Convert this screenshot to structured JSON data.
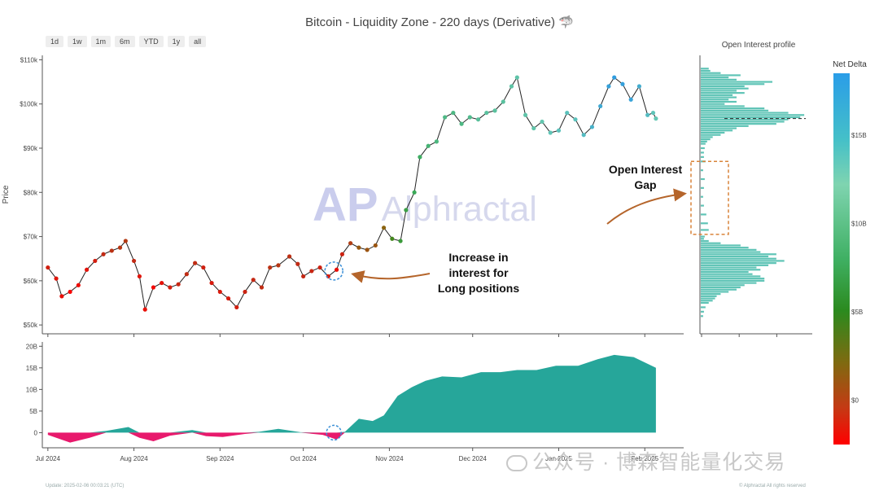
{
  "title": "Bitcoin - Liquidity Zone - 220 days (Derivative) 🦈",
  "range_buttons": [
    "1d",
    "1w",
    "1m",
    "6m",
    "YTD",
    "1y",
    "all"
  ],
  "oi_title": "Open Interest profile",
  "colorbar_title": "Net Delta",
  "logo_text": "Alphractal",
  "logo_mark": "AP",
  "footer_left": "Update: 2025-02-06 00:03:21 (UTC)",
  "footer_right": "© Alphractal All rights reserved",
  "watermark": "公众号 · 博森智能量化交易",
  "colors": {
    "oi_bar": "#5fc4b6",
    "area_pos": "#26a69a",
    "area_neg": "#e8196c",
    "annotation": "#b5652b",
    "gap_box": "#d9843a"
  },
  "chart_data": [
    {
      "type": "scatter",
      "name": "price",
      "ylabel": "Price",
      "ylim": [
        48000,
        111000
      ],
      "yticks": [
        "$50k",
        "$60k",
        "$70k",
        "$80k",
        "$90k",
        "$100k",
        "$110k"
      ],
      "xticks": [
        "Jul 2024",
        "Aug 2024",
        "Sep 2024",
        "Oct 2024",
        "Nov 2024",
        "Dec 2024",
        "Jan 2025",
        "Feb 2025"
      ],
      "x_range": [
        "2024-06-29",
        "2025-02-15"
      ],
      "x": [
        "2024-07-01",
        "2024-07-04",
        "2024-07-06",
        "2024-07-09",
        "2024-07-12",
        "2024-07-15",
        "2024-07-18",
        "2024-07-21",
        "2024-07-24",
        "2024-07-27",
        "2024-07-29",
        "2024-08-01",
        "2024-08-03",
        "2024-08-05",
        "2024-08-08",
        "2024-08-11",
        "2024-08-14",
        "2024-08-17",
        "2024-08-20",
        "2024-08-23",
        "2024-08-26",
        "2024-08-29",
        "2024-09-01",
        "2024-09-04",
        "2024-09-07",
        "2024-09-10",
        "2024-09-13",
        "2024-09-16",
        "2024-09-19",
        "2024-09-22",
        "2024-09-26",
        "2024-09-29",
        "2024-10-01",
        "2024-10-04",
        "2024-10-07",
        "2024-10-10",
        "2024-10-13",
        "2024-10-15",
        "2024-10-18",
        "2024-10-21",
        "2024-10-24",
        "2024-10-27",
        "2024-10-30",
        "2024-11-02",
        "2024-11-05",
        "2024-11-07",
        "2024-11-10",
        "2024-11-12",
        "2024-11-15",
        "2024-11-18",
        "2024-11-21",
        "2024-11-24",
        "2024-11-27",
        "2024-11-30",
        "2024-12-03",
        "2024-12-06",
        "2024-12-09",
        "2024-12-12",
        "2024-12-15",
        "2024-12-17",
        "2024-12-20",
        "2024-12-23",
        "2024-12-26",
        "2024-12-29",
        "2025-01-01",
        "2025-01-04",
        "2025-01-07",
        "2025-01-10",
        "2025-01-13",
        "2025-01-16",
        "2025-01-19",
        "2025-01-21",
        "2025-01-24",
        "2025-01-27",
        "2025-01-30",
        "2025-02-02",
        "2025-02-04",
        "2025-02-05"
      ],
      "y": [
        63000,
        60500,
        56500,
        57500,
        59000,
        62500,
        64500,
        66000,
        66800,
        67500,
        69000,
        64500,
        61000,
        53500,
        58500,
        59500,
        58500,
        59200,
        61500,
        64000,
        63000,
        59500,
        57500,
        56000,
        54000,
        57500,
        60200,
        58500,
        63000,
        63500,
        65500,
        63800,
        61000,
        62200,
        63000,
        61000,
        62500,
        66000,
        68500,
        67500,
        67000,
        68000,
        72000,
        69500,
        69000,
        76000,
        80000,
        88000,
        90500,
        91500,
        97000,
        98000,
        95500,
        97000,
        96500,
        98000,
        98500,
        100500,
        104000,
        106000,
        97500,
        94500,
        96000,
        93500,
        94000,
        98000,
        96500,
        93000,
        94800,
        99500,
        104000,
        106000,
        104500,
        101000,
        104000,
        97500,
        98000,
        96700
      ]
    },
    {
      "type": "area",
      "name": "net delta",
      "ylim": [
        -3500000000,
        21000000000
      ],
      "yticks": [
        "0",
        "5B",
        "10B",
        "15B",
        "20B"
      ],
      "x": [
        "2024-07-01",
        "2024-07-09",
        "2024-07-16",
        "2024-07-22",
        "2024-07-30",
        "2024-08-03",
        "2024-08-08",
        "2024-08-14",
        "2024-08-22",
        "2024-08-27",
        "2024-09-02",
        "2024-09-10",
        "2024-09-15",
        "2024-09-22",
        "2024-09-30",
        "2024-10-08",
        "2024-10-13",
        "2024-10-16",
        "2024-10-21",
        "2024-10-26",
        "2024-10-30",
        "2024-11-04",
        "2024-11-09",
        "2024-11-14",
        "2024-11-20",
        "2024-11-27",
        "2024-12-04",
        "2024-12-11",
        "2024-12-17",
        "2024-12-24",
        "2024-12-31",
        "2025-01-08",
        "2025-01-15",
        "2025-01-21",
        "2025-01-28",
        "2025-02-05"
      ],
      "values": [
        -500000000,
        -2300000000,
        -1200000000,
        400000000,
        1300000000,
        -1200000000,
        -2000000000,
        -700000000,
        600000000,
        -800000000,
        -1000000000,
        -300000000,
        200000000,
        900000000,
        100000000,
        -500000000,
        -1600000000,
        200000000,
        3200000000,
        2700000000,
        4000000000,
        8500000000,
        10500000000,
        12000000000,
        13000000000,
        12800000000,
        14000000000,
        14000000000,
        14500000000,
        14500000000,
        15500000000,
        15500000000,
        17000000000,
        18000000000,
        17500000000,
        15000000000
      ]
    },
    {
      "type": "bar",
      "name": "Open Interest profile",
      "price_levels_k": [
        108,
        107.5,
        107,
        106.5,
        106,
        105.5,
        105,
        104.5,
        104,
        103.5,
        103,
        102.5,
        102,
        101.5,
        101,
        100.5,
        100,
        99.5,
        99,
        98.5,
        98,
        97.5,
        97,
        96.5,
        96,
        95.5,
        95,
        94.5,
        94,
        93.5,
        93,
        92.5,
        92,
        91.5,
        91,
        90,
        89,
        88,
        87,
        85,
        83,
        81,
        79,
        77,
        75,
        73,
        71.5,
        70,
        69.5,
        69,
        68.5,
        68,
        67.5,
        67,
        66.5,
        66,
        65.5,
        65,
        64.5,
        64,
        63.5,
        63,
        62.5,
        62,
        61.5,
        61,
        60.5,
        60,
        59.5,
        59,
        58.5,
        58,
        57.5,
        57,
        56.5,
        56,
        55.5,
        55,
        54,
        53,
        52
      ],
      "values": [
        10,
        12,
        25,
        50,
        35,
        45,
        90,
        80,
        55,
        60,
        45,
        55,
        40,
        45,
        35,
        45,
        30,
        55,
        80,
        85,
        110,
        130,
        125,
        110,
        105,
        95,
        60,
        45,
        40,
        30,
        25,
        15,
        12,
        8,
        6,
        5,
        4,
        4,
        6,
        3,
        5,
        4,
        3,
        4,
        7,
        9,
        10,
        5,
        4,
        10,
        25,
        50,
        60,
        70,
        75,
        95,
        85,
        95,
        105,
        95,
        85,
        70,
        75,
        60,
        65,
        75,
        80,
        80,
        70,
        55,
        50,
        45,
        35,
        25,
        20,
        18,
        15,
        10,
        6,
        4,
        3
      ]
    }
  ],
  "annotations": {
    "long_positions": "Increase in\ninterest for\nLong positions",
    "oi_gap": "Open Interest\nGap"
  }
}
